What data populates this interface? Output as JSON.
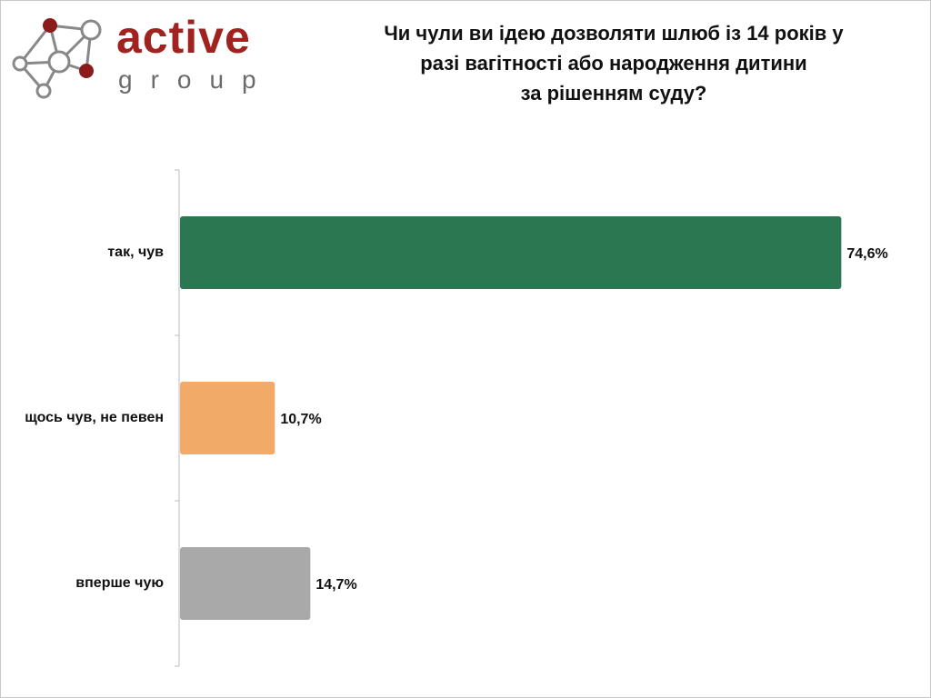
{
  "logo": {
    "name": "active",
    "tagline": "group"
  },
  "chart_data": {
    "type": "bar",
    "orientation": "horizontal",
    "title": "Чи чули ви ідею дозволяти шлюб із 14 років у\nразі вагітності або народження дитини\nза рішенням суду?",
    "categories": [
      "так, чув",
      "щось чув, не певен",
      "вперше чую"
    ],
    "values": [
      74.6,
      10.7,
      14.7
    ],
    "value_labels": [
      "74,6%",
      "10,7%",
      "14,7%"
    ],
    "colors": [
      "#2a7752",
      "#f2aa68",
      "#a9a9a9"
    ]
  }
}
